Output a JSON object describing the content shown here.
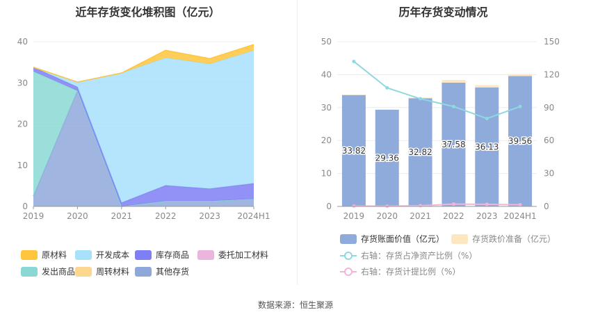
{
  "source_text": "数据来源：恒生聚源",
  "chart_data": [
    {
      "type": "area",
      "title": "近年存货变化堆积图（亿元）",
      "categories": [
        "2019",
        "2020",
        "2021",
        "2022",
        "2023",
        "2024H1"
      ],
      "ylim": [
        0,
        40
      ],
      "yticks": [
        0,
        10,
        20,
        30,
        40
      ],
      "grid": true,
      "legend_position": "bottom",
      "series": [
        {
          "name": "原材料",
          "color": "#ffc53d",
          "values": [
            0,
            0,
            0,
            1.8,
            1.3,
            1.4
          ]
        },
        {
          "name": "开发成本",
          "color": "#a8e1fb",
          "values": [
            0,
            1.2,
            31.5,
            31.0,
            30.3,
            32.3
          ]
        },
        {
          "name": "库存商品",
          "color": "#7f7ff5",
          "values": [
            1.0,
            0.9,
            0.9,
            3.8,
            3.0,
            3.8
          ]
        },
        {
          "name": "委托加工材料",
          "color": "#ebb5dd",
          "values": [
            0,
            0,
            0,
            0,
            0,
            0
          ]
        },
        {
          "name": "发出商品",
          "color": "#8ad8d4",
          "values": [
            30.3,
            0,
            0,
            0,
            0,
            0
          ]
        },
        {
          "name": "周转材料",
          "color": "#fdd78f",
          "values": [
            0,
            0,
            0,
            0,
            0,
            0
          ]
        },
        {
          "name": "其他存货",
          "color": "#8fa8d9",
          "values": [
            2.5,
            28.1,
            0,
            1.3,
            1.3,
            1.8
          ]
        }
      ]
    },
    {
      "type": "bar",
      "title": "历年存货变动情况",
      "categories": [
        "2019",
        "2020",
        "2021",
        "2022",
        "2023",
        "2024H1"
      ],
      "ylim": [
        0,
        50
      ],
      "yticks": [
        0,
        10,
        20,
        30,
        40,
        50
      ],
      "y2lim": [
        0,
        150
      ],
      "y2ticks": [
        0,
        30,
        60,
        90,
        120,
        150
      ],
      "grid": true,
      "legend_position": "bottom",
      "series": [
        {
          "name": "存货账面价值（亿元）",
          "kind": "bar",
          "axis": "left",
          "color": "#8fabdb",
          "values": [
            33.82,
            29.36,
            32.82,
            37.58,
            36.13,
            39.56
          ],
          "labels": [
            "33.82",
            "29.36",
            "32.82",
            "37.58",
            "36.13",
            "39.56"
          ]
        },
        {
          "name": "存货跌价准备（亿元）",
          "kind": "bar",
          "axis": "left",
          "color": "#fde7c1",
          "values": [
            0.1,
            0.05,
            0.2,
            0.8,
            0.7,
            0.6
          ]
        },
        {
          "name": "右轴：存货占净资产比例（%）",
          "kind": "line",
          "axis": "right",
          "color": "#8fd8e0",
          "values": [
            132,
            108,
            98,
            91,
            80,
            91
          ]
        },
        {
          "name": "右轴：存货计提比例（%）",
          "kind": "line",
          "axis": "right",
          "color": "#f1b5d8",
          "values": [
            0.3,
            0.2,
            0.6,
            2.1,
            1.9,
            1.5
          ]
        }
      ]
    }
  ]
}
